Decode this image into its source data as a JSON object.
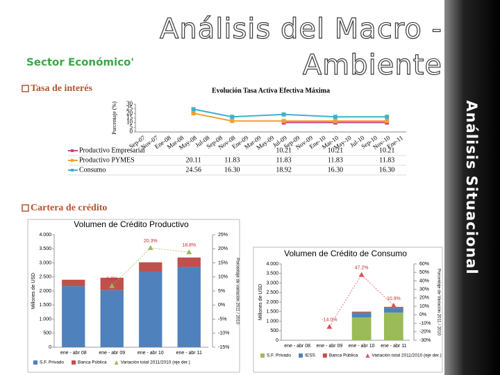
{
  "header": {
    "title_lines": [
      "Análisis del Macro -",
      "Ambiente"
    ],
    "section": "Sector Económico'",
    "side_title": "Análisis Situacional"
  },
  "bullets": [
    "Tasa de interés",
    "Cartera de crédito"
  ],
  "chart_data": [
    {
      "type": "line",
      "title": "Evolución Tasa Activa Efectiva Máxima",
      "y_label": "Porcentaje (%)",
      "categories": [
        "Sep-07",
        "Nov-07",
        "Ene-08",
        "Mar-08",
        "May-08",
        "Jul-08",
        "Sep-08",
        "Nov-08",
        "Ene-09",
        "Mar-09",
        "May-09",
        "Jul-09",
        "Sep-09",
        "Nov-09",
        "Ene-10",
        "Mar-10",
        "May-10",
        "Jul-10",
        "Sep-10",
        "Nov-10",
        "Ene-11"
      ],
      "series": [
        {
          "name": "Productivo Empresarial",
          "color": "#d0407a",
          "values": [
            null,
            null,
            null,
            null,
            null,
            null,
            null,
            null,
            null,
            null,
            null,
            10.21,
            null,
            null,
            null,
            10.21,
            null,
            null,
            null,
            10.21,
            null
          ]
        },
        {
          "name": "Productivo PYMES",
          "color": "#f0a030",
          "values": [
            null,
            null,
            null,
            null,
            20.11,
            null,
            null,
            11.83,
            null,
            null,
            null,
            11.83,
            null,
            null,
            null,
            11.83,
            null,
            null,
            null,
            11.83,
            null
          ]
        },
        {
          "name": "Consumo",
          "color": "#3fb0d0",
          "values": [
            null,
            null,
            null,
            null,
            24.56,
            null,
            null,
            16.3,
            null,
            null,
            null,
            18.92,
            null,
            null,
            null,
            16.3,
            null,
            null,
            null,
            16.3,
            null
          ],
          "value_labels": [
            null,
            null,
            null,
            null,
            null,
            null,
            null,
            "16.30",
            null,
            null,
            null,
            null,
            null,
            null,
            null,
            "16.30",
            null,
            null,
            null,
            "16.30",
            null
          ]
        }
      ],
      "ylim": [
        0,
        30
      ],
      "yticks": [
        0,
        5,
        10,
        15,
        20,
        25,
        30
      ]
    },
    {
      "type": "bar",
      "title": "Volumen de Crédito Productivo",
      "y_label": "Millones de USD",
      "y2_label": "Porcentaje de variación 2011 / 2010",
      "categories": [
        "ene - abr 08",
        "ene - abr 09",
        "ene - abr 10",
        "ene - abr 11"
      ],
      "series": [
        {
          "name": "S.F. Privado",
          "color": "#4f81bd",
          "values": [
            2170,
            2030,
            2680,
            2850
          ]
        },
        {
          "name": "Banca Pública",
          "color": "#c0504d",
          "values": [
            230,
            440,
            340,
            340
          ]
        },
        {
          "name": "Variación total 2011/2010 (eje der.)",
          "color": "#9bbb59",
          "axis": "y2",
          "values": [
            null,
            6.8,
            20.3,
            18.8
          ],
          "value_labels": [
            null,
            "6.8%",
            "20.3%",
            "18.8%"
          ]
        }
      ],
      "ylim": [
        0,
        4000
      ],
      "yticks": [
        0,
        500,
        {
          "value": 1000,
          "label": "1.000"
        },
        {
          "value": 1500,
          "label": "1.500"
        },
        {
          "value": 2000,
          "label": "2.000"
        },
        {
          "value": 2500,
          "label": "2.500"
        },
        {
          "value": 3000,
          "label": "3.000"
        },
        {
          "value": 3500,
          "label": "3.500"
        },
        {
          "value": 4000,
          "label": "4.000"
        }
      ],
      "y2lim": [
        -15,
        25
      ],
      "y2ticks": [
        {
          "value": -15,
          "label": "-15%"
        },
        {
          "value": -10,
          "label": "-10%"
        },
        {
          "value": -5,
          "label": "-5%"
        },
        {
          "value": 0,
          "label": "0%"
        },
        {
          "value": 5,
          "label": "5%"
        },
        {
          "value": 10,
          "label": "10%"
        },
        {
          "value": 15,
          "label": "15%"
        },
        {
          "value": 20,
          "label": "20%"
        },
        {
          "value": 25,
          "label": "25%"
        }
      ]
    },
    {
      "type": "bar",
      "title": "Volumen de Crédito de Consumo",
      "y_label": "Millones de USD",
      "y2_label": "Porcentaje de Variación 2011 / 2010",
      "categories": [
        "ene - abr 08",
        "ene - abr 09",
        "ene - abr 10",
        "ene - abr 11"
      ],
      "series": [
        {
          "name": "S.F. Privado",
          "color": "#9bbb59",
          "values": [
            null,
            null,
            1200,
            1450
          ]
        },
        {
          "name": "IESS",
          "color": "#4f81bd",
          "values": [
            null,
            null,
            250,
            250
          ]
        },
        {
          "name": "Banca Pública",
          "color": "#c0504d",
          "values": [
            null,
            null,
            50,
            50
          ]
        },
        {
          "name": "Variación total 2011/2010 (eje der.)",
          "color": "#e05050",
          "axis": "y2",
          "values": [
            null,
            -14.0,
            47.2,
            10.9
          ],
          "value_labels": [
            null,
            "-14.0%",
            "47.2%",
            "10.9%"
          ]
        }
      ],
      "ylim": [
        0,
        4000
      ],
      "yticks": [
        0,
        500,
        {
          "value": 1000,
          "label": "1.000"
        },
        {
          "value": 1500,
          "label": "1.500"
        },
        {
          "value": 2000,
          "label": "2.000"
        },
        {
          "value": 2500,
          "label": "2.500"
        },
        {
          "value": 3000,
          "label": "3.000"
        },
        {
          "value": 3500,
          "label": "3.500"
        },
        {
          "value": 4000,
          "label": "4.000"
        }
      ],
      "y2lim": [
        -30,
        60
      ],
      "y2ticks": [
        {
          "value": -30,
          "label": "-30%"
        },
        {
          "value": -20,
          "label": "-20%"
        },
        {
          "value": -10,
          "label": "-10%"
        },
        {
          "value": 0,
          "label": "0%"
        },
        {
          "value": 10,
          "label": "10%"
        },
        {
          "value": 20,
          "label": "20%"
        },
        {
          "value": 30,
          "label": "30%"
        },
        {
          "value": 40,
          "label": "40%"
        },
        {
          "value": 50,
          "label": "50%"
        },
        {
          "value": 60,
          "label": "60%"
        }
      ]
    }
  ]
}
